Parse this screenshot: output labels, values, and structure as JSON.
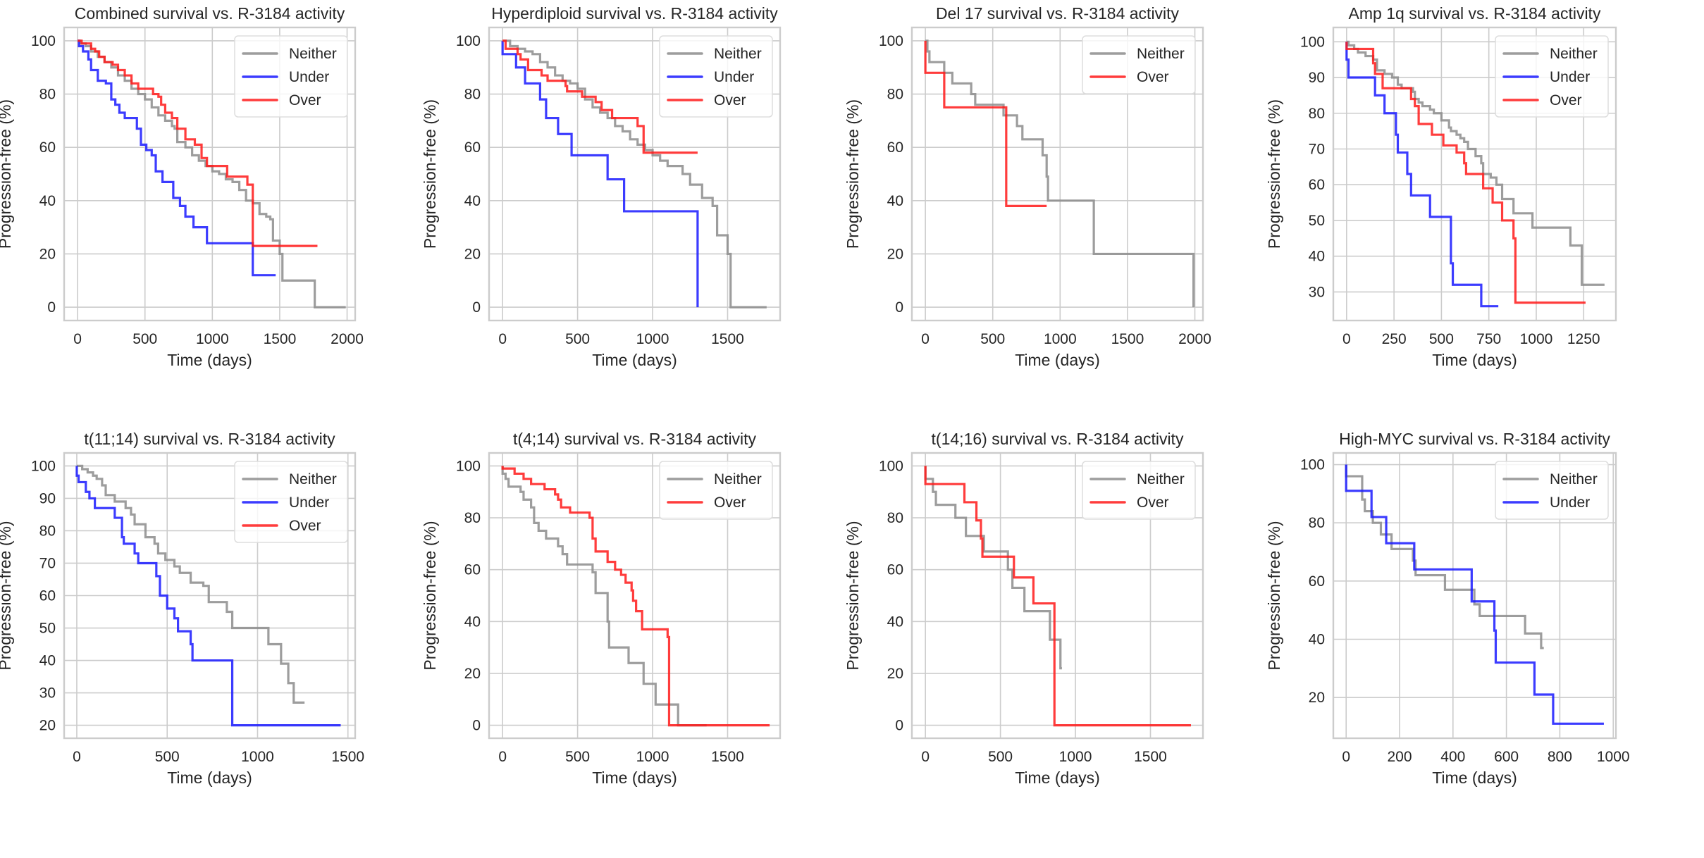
{
  "figure": {
    "layout": "2 rows x 4 columns",
    "background": "#ffffff"
  },
  "series_colors": {
    "Neither": "#8c8c8c",
    "Under": "#1a1aff",
    "Over": "#ff1a1a"
  },
  "chart_data": [
    {
      "id": "combined",
      "type": "line",
      "step": true,
      "title": "Combined survival vs. R-3184 activity",
      "xlabel": "Time (days)",
      "ylabel": "Progression-free (%)",
      "xlim": [
        -100,
        2060
      ],
      "ylim": [
        -5,
        105
      ],
      "xticks": [
        0,
        500,
        1000,
        1500,
        2000
      ],
      "yticks": [
        0,
        20,
        40,
        60,
        80,
        100
      ],
      "grid": true,
      "legend": {
        "position": "top-right",
        "entries": [
          "Neither",
          "Under",
          "Over"
        ]
      },
      "series": [
        {
          "name": "Neither",
          "x": [
            0,
            20,
            60,
            100,
            150,
            200,
            250,
            300,
            350,
            400,
            450,
            500,
            550,
            600,
            650,
            700,
            720,
            740,
            800,
            850,
            900,
            950,
            1000,
            1050,
            1100,
            1150,
            1200,
            1250,
            1300,
            1350,
            1400,
            1430,
            1450,
            1500,
            1520,
            1760,
            1990
          ],
          "y": [
            100,
            99,
            98,
            96,
            94,
            92,
            90,
            87,
            85,
            82,
            80,
            78,
            75,
            72,
            70,
            68,
            67,
            62,
            60,
            57,
            55,
            53,
            51,
            50,
            48,
            47,
            44,
            40,
            39,
            35,
            34,
            33,
            25,
            20,
            10,
            0,
            0
          ]
        },
        {
          "name": "Under",
          "x": [
            0,
            10,
            40,
            80,
            100,
            150,
            210,
            250,
            280,
            310,
            350,
            440,
            470,
            510,
            550,
            580,
            630,
            710,
            760,
            800,
            860,
            960,
            1300,
            1470
          ],
          "y": [
            100,
            98,
            96,
            93,
            89,
            85,
            84,
            78,
            76,
            73,
            71,
            67,
            61,
            59,
            57,
            51,
            47,
            41,
            38,
            34,
            30,
            24,
            12,
            12
          ]
        },
        {
          "name": "Over",
          "x": [
            0,
            30,
            100,
            130,
            160,
            200,
            260,
            300,
            350,
            400,
            450,
            520,
            560,
            600,
            620,
            650,
            700,
            740,
            800,
            870,
            920,
            960,
            1110,
            1260,
            1300,
            1780
          ],
          "y": [
            100,
            99,
            97,
            96,
            94,
            92,
            91,
            89,
            87,
            84,
            82,
            82,
            80,
            79,
            76,
            73,
            71,
            67,
            63,
            61,
            56,
            53,
            49,
            46,
            23,
            23
          ]
        }
      ]
    },
    {
      "id": "hyperdiploid",
      "type": "line",
      "step": true,
      "title": "Hyperdiploid survival vs. R-3184 activity",
      "xlabel": "Time (days)",
      "ylabel": "Progression-free (%)",
      "xlim": [
        -90,
        1850
      ],
      "ylim": [
        -5,
        105
      ],
      "xticks": [
        0,
        500,
        1000,
        1500
      ],
      "yticks": [
        0,
        20,
        40,
        60,
        80,
        100
      ],
      "grid": true,
      "legend": {
        "position": "top-right",
        "entries": [
          "Neither",
          "Under",
          "Over"
        ]
      },
      "series": [
        {
          "name": "Neither",
          "x": [
            0,
            50,
            100,
            150,
            200,
            250,
            300,
            350,
            400,
            450,
            500,
            550,
            600,
            650,
            700,
            750,
            800,
            850,
            900,
            950,
            1000,
            1050,
            1100,
            1200,
            1250,
            1300,
            1330,
            1400,
            1430,
            1500,
            1520,
            1760
          ],
          "y": [
            100,
            98,
            97,
            96,
            95,
            92,
            90,
            87,
            85,
            84,
            82,
            78,
            75,
            73,
            71,
            68,
            66,
            63,
            61,
            59,
            57,
            55,
            53,
            50,
            46,
            46,
            41,
            38,
            27,
            20,
            0,
            0
          ]
        },
        {
          "name": "Under",
          "x": [
            0,
            80,
            90,
            150,
            250,
            290,
            370,
            460,
            700,
            810,
            1300
          ],
          "y": [
            95,
            95,
            90,
            84,
            78,
            71,
            65,
            57,
            48,
            36,
            0
          ]
        },
        {
          "name": "Over",
          "x": [
            0,
            20,
            100,
            120,
            170,
            260,
            300,
            420,
            430,
            530,
            620,
            660,
            730,
            900,
            940,
            1300
          ],
          "y": [
            100,
            97,
            95,
            93,
            89,
            87,
            85,
            83,
            81,
            79,
            77,
            74,
            71,
            68,
            58,
            58
          ]
        }
      ]
    },
    {
      "id": "del17",
      "type": "line",
      "step": true,
      "title": "Del 17 survival vs. R-3184 activity",
      "xlabel": "Time (days)",
      "ylabel": "Progression-free (%)",
      "xlim": [
        -100,
        2060
      ],
      "ylim": [
        -5,
        105
      ],
      "xticks": [
        0,
        500,
        1000,
        1500,
        2000
      ],
      "yticks": [
        0,
        20,
        40,
        60,
        80,
        100
      ],
      "grid": true,
      "legend": {
        "position": "top-right",
        "entries": [
          "Neither",
          "Over"
        ]
      },
      "series": [
        {
          "name": "Neither",
          "x": [
            0,
            15,
            30,
            140,
            200,
            340,
            370,
            580,
            680,
            720,
            870,
            900,
            910,
            1250,
            1990
          ],
          "y": [
            100,
            96,
            92,
            88,
            84,
            80,
            76,
            72,
            68,
            63,
            57,
            49,
            40,
            20,
            0
          ]
        },
        {
          "name": "Over",
          "x": [
            0,
            140,
            600,
            900
          ],
          "y": [
            88,
            75,
            38,
            38
          ]
        }
      ]
    },
    {
      "id": "amp1q",
      "type": "line",
      "step": true,
      "title": "Amp 1q survival vs. R-3184 activity",
      "xlabel": "Time (days)",
      "ylabel": "Progression-free (%)",
      "xlim": [
        -70,
        1420
      ],
      "ylim": [
        22,
        104
      ],
      "xticks": [
        0,
        250,
        500,
        750,
        1000,
        1250
      ],
      "yticks": [
        30,
        40,
        50,
        60,
        70,
        80,
        90,
        100
      ],
      "grid": true,
      "legend": {
        "position": "top-right",
        "entries": [
          "Neither",
          "Under",
          "Over"
        ]
      },
      "series": [
        {
          "name": "Neither",
          "x": [
            0,
            10,
            40,
            60,
            100,
            140,
            160,
            200,
            240,
            270,
            290,
            350,
            360,
            380,
            400,
            440,
            460,
            500,
            540,
            550,
            580,
            600,
            620,
            640,
            680,
            710,
            720,
            760,
            790,
            820,
            880,
            920,
            980,
            1180,
            1240,
            1360
          ],
          "y": [
            100,
            99,
            98,
            97,
            96,
            95,
            92,
            91,
            90,
            88,
            87,
            86,
            84,
            83,
            82,
            81,
            80,
            78,
            76,
            75,
            74,
            73,
            72,
            70,
            68,
            66,
            63,
            62,
            60,
            56,
            52,
            52,
            48,
            43,
            32,
            32
          ]
        },
        {
          "name": "Under",
          "x": [
            0,
            10,
            150,
            200,
            260,
            270,
            320,
            340,
            440,
            550,
            560,
            710,
            800
          ],
          "y": [
            95,
            90,
            85,
            80,
            74,
            69,
            63,
            57,
            51,
            38,
            32,
            26,
            26
          ]
        },
        {
          "name": "Over",
          "x": [
            0,
            140,
            150,
            190,
            340,
            360,
            380,
            450,
            510,
            580,
            620,
            630,
            720,
            770,
            820,
            880,
            890,
            1260
          ],
          "y": [
            98,
            94,
            91,
            87,
            84,
            82,
            77,
            74,
            71,
            69,
            66,
            63,
            59,
            55,
            50,
            45,
            27,
            27
          ]
        }
      ]
    },
    {
      "id": "t11_14",
      "type": "line",
      "step": true,
      "title": "t(11;14) survival vs. R-3184 activity",
      "xlabel": "Time (days)",
      "ylabel": "Progression-free (%)",
      "xlim": [
        -70,
        1540
      ],
      "ylim": [
        16,
        104
      ],
      "xticks": [
        0,
        500,
        1000,
        1500
      ],
      "yticks": [
        20,
        30,
        40,
        50,
        60,
        70,
        80,
        90,
        100
      ],
      "grid": true,
      "legend": {
        "position": "top-right",
        "entries": [
          "Neither",
          "Under",
          "Over"
        ]
      },
      "series": [
        {
          "name": "Neither",
          "x": [
            0,
            30,
            60,
            90,
            110,
            140,
            160,
            210,
            270,
            300,
            320,
            380,
            430,
            450,
            490,
            540,
            570,
            630,
            700,
            730,
            830,
            860,
            1060,
            1130,
            1170,
            1200,
            1260
          ],
          "y": [
            100,
            99,
            98,
            97,
            96,
            94,
            91,
            89,
            87,
            85,
            82,
            78,
            76,
            73,
            71,
            69,
            67,
            64,
            63,
            58,
            55,
            50,
            45,
            39,
            33,
            27,
            27
          ]
        },
        {
          "name": "Under",
          "x": [
            0,
            10,
            50,
            70,
            100,
            210,
            250,
            260,
            320,
            340,
            440,
            460,
            500,
            540,
            560,
            630,
            640,
            860,
            1460
          ],
          "y": [
            97,
            95,
            92,
            90,
            87,
            84,
            78,
            76,
            73,
            70,
            66,
            60,
            56,
            53,
            49,
            45,
            40,
            20,
            20
          ]
        },
        {
          "name": "Over",
          "x": [],
          "y": []
        }
      ]
    },
    {
      "id": "t4_14",
      "type": "line",
      "step": true,
      "title": "t(4;14) survival vs. R-3184 activity",
      "xlabel": "Time (days)",
      "ylabel": "Progression-free (%)",
      "xlim": [
        -90,
        1850
      ],
      "ylim": [
        -5,
        105
      ],
      "xticks": [
        0,
        500,
        1000,
        1500
      ],
      "yticks": [
        0,
        20,
        40,
        60,
        80,
        100
      ],
      "grid": true,
      "legend": {
        "position": "top-right",
        "entries": [
          "Neither",
          "Over"
        ]
      },
      "series": [
        {
          "name": "Neither",
          "x": [
            0,
            20,
            40,
            120,
            140,
            190,
            210,
            240,
            290,
            370,
            400,
            430,
            600,
            620,
            700,
            710,
            840,
            940,
            1020,
            1170,
            1360
          ],
          "y": [
            97,
            95,
            92,
            90,
            87,
            84,
            78,
            75,
            72,
            69,
            66,
            62,
            59,
            51,
            40,
            30,
            24,
            16,
            8,
            0,
            0
          ]
        },
        {
          "name": "Over",
          "x": [
            0,
            80,
            140,
            190,
            280,
            350,
            370,
            390,
            450,
            580,
            600,
            620,
            700,
            750,
            790,
            820,
            860,
            870,
            890,
            930,
            1100,
            1110,
            1780
          ],
          "y": [
            99,
            97,
            95,
            93,
            91,
            89,
            87,
            84,
            82,
            80,
            72,
            67,
            63,
            60,
            58,
            55,
            52,
            48,
            44,
            37,
            34,
            0,
            0
          ]
        }
      ]
    },
    {
      "id": "t14_16",
      "type": "line",
      "step": true,
      "title": "t(14;16) survival vs. R-3184 activity",
      "xlabel": "Time (days)",
      "ylabel": "Progression-free (%)",
      "xlim": [
        -90,
        1850
      ],
      "ylim": [
        -5,
        105
      ],
      "xticks": [
        0,
        500,
        1000,
        1500
      ],
      "yticks": [
        0,
        20,
        40,
        60,
        80,
        100
      ],
      "grid": true,
      "legend": {
        "position": "top-right",
        "entries": [
          "Neither",
          "Over"
        ]
      },
      "series": [
        {
          "name": "Neither",
          "x": [
            0,
            50,
            70,
            200,
            270,
            390,
            550,
            580,
            660,
            830,
            900,
            910
          ],
          "y": [
            95,
            90,
            85,
            80,
            73,
            67,
            60,
            53,
            44,
            33,
            22,
            22
          ]
        },
        {
          "name": "Over",
          "x": [
            0,
            260,
            340,
            370,
            380,
            590,
            720,
            860,
            1770
          ],
          "y": [
            93,
            86,
            79,
            72,
            65,
            57,
            47,
            0,
            0
          ]
        }
      ]
    },
    {
      "id": "high_myc",
      "type": "line",
      "step": true,
      "title": "High-MYC survival vs. R-3184 activity",
      "xlabel": "Time (days)",
      "ylabel": "Progression-free (%)",
      "xlim": [
        -48,
        1010
      ],
      "ylim": [
        6,
        104
      ],
      "xticks": [
        0,
        200,
        400,
        600,
        800,
        1000
      ],
      "yticks": [
        20,
        40,
        60,
        80,
        100
      ],
      "grid": true,
      "legend": {
        "position": "top-right",
        "entries": [
          "Neither",
          "Under"
        ]
      },
      "series": [
        {
          "name": "Neither",
          "x": [
            0,
            60,
            70,
            100,
            130,
            170,
            250,
            260,
            370,
            480,
            500,
            670,
            730,
            740
          ],
          "y": [
            96,
            88,
            84,
            80,
            76,
            71,
            67,
            62,
            57,
            52,
            48,
            42,
            37,
            37
          ]
        },
        {
          "name": "Under",
          "x": [
            0,
            95,
            150,
            255,
            470,
            555,
            560,
            705,
            775,
            965
          ],
          "y": [
            91,
            82,
            73,
            64,
            53,
            43,
            32,
            21,
            11,
            11
          ]
        }
      ]
    }
  ]
}
